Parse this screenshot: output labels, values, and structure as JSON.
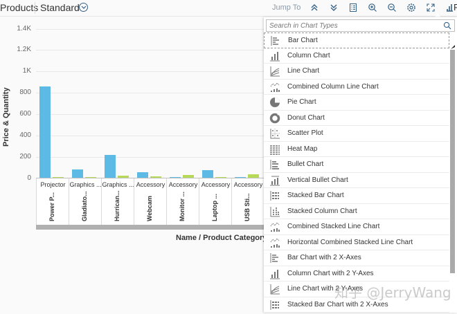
{
  "toolbar": {
    "title": "Products",
    "variant": "Standard",
    "jump_to": "Jump To",
    "icons": [
      "expand-up-icon",
      "expand-down-icon",
      "legend-icon",
      "zoom-in-icon",
      "zoom-out-icon",
      "settings-icon",
      "fullscreen-icon",
      "chart-type-icon"
    ],
    "chart_type_label_partial": "P",
    "colors": {
      "icon": "#346187",
      "jump_to": "#8a99ab"
    }
  },
  "chart": {
    "y_title": "Price & Quantity",
    "x_title": "Name / Product Category",
    "y_ticks": [
      "1.4K",
      "1.2K",
      "1K",
      "800",
      "600",
      "400",
      "200",
      "0"
    ],
    "categories": [
      {
        "category": "Projector",
        "name": "Power P..."
      },
      {
        "category": "Graphics ...",
        "name": "Gladiato..."
      },
      {
        "category": "Graphics ...",
        "name": "Hurrican..."
      },
      {
        "category": "Accessory",
        "name": "Webcam"
      },
      {
        "category": "Accessory",
        "name": "Monitor ..."
      },
      {
        "category": "Accessory",
        "name": "Laptop ..."
      },
      {
        "category": "Accessory",
        "name": "USB Sti..."
      }
    ],
    "colors": {
      "price": "#5cbae5",
      "quantity": "#b6d957"
    }
  },
  "chart_data": {
    "type": "bar",
    "title": "",
    "xlabel": "Name / Product Category",
    "ylabel": "Price & Quantity",
    "ylim": [
      0,
      1400
    ],
    "categories": [
      "Power P... / Projector",
      "Gladiato... / Graphics ...",
      "Hurrican... / Graphics ...",
      "Webcam / Accessory",
      "Monitor ... / Accessory",
      "Laptop ... / Accessory",
      "USB Sti... / Accessory"
    ],
    "series": [
      {
        "name": "Price",
        "values": [
          852,
          77,
          213,
          52,
          7,
          72,
          9
        ]
      },
      {
        "name": "Quantity",
        "values": [
          5,
          3,
          20,
          15,
          25,
          7,
          35
        ]
      }
    ],
    "grid": true,
    "legend": "none visible"
  },
  "dropdown": {
    "search_placeholder": "Search in Chart Types",
    "items": [
      {
        "label": "Bar Chart",
        "icon": "bar-chart-icon",
        "selected": true
      },
      {
        "label": "Column Chart",
        "icon": "column-chart-icon"
      },
      {
        "label": "Line Chart",
        "icon": "line-chart-icon"
      },
      {
        "label": "Combined Column Line Chart",
        "icon": "combined-column-line-icon"
      },
      {
        "label": "Pie Chart",
        "icon": "pie-chart-icon"
      },
      {
        "label": "Donut Chart",
        "icon": "donut-chart-icon"
      },
      {
        "label": "Scatter Plot",
        "icon": "scatter-plot-icon"
      },
      {
        "label": "Heat Map",
        "icon": "heat-map-icon"
      },
      {
        "label": "Bullet Chart",
        "icon": "bullet-chart-icon"
      },
      {
        "label": "Vertical Bullet Chart",
        "icon": "vertical-bullet-chart-icon"
      },
      {
        "label": "Stacked Bar Chart",
        "icon": "stacked-bar-chart-icon"
      },
      {
        "label": "Stacked Column Chart",
        "icon": "stacked-column-chart-icon"
      },
      {
        "label": "Combined Stacked Line Chart",
        "icon": "combined-stacked-line-icon"
      },
      {
        "label": "Horizontal Combined Stacked Line Chart",
        "icon": "horizontal-combined-stacked-line-icon"
      },
      {
        "label": "Bar Chart with 2 X-Axes",
        "icon": "bar-chart-2x-icon"
      },
      {
        "label": "Column Chart with 2 Y-Axes",
        "icon": "column-chart-2y-icon"
      },
      {
        "label": "Line Chart with 2 Y-Axes",
        "icon": "line-chart-2y-icon"
      },
      {
        "label": "Stacked Bar Chart with 2 X-Axes",
        "icon": "stacked-bar-chart-2x-icon"
      }
    ]
  },
  "watermark": "知乎 @JerryWang"
}
